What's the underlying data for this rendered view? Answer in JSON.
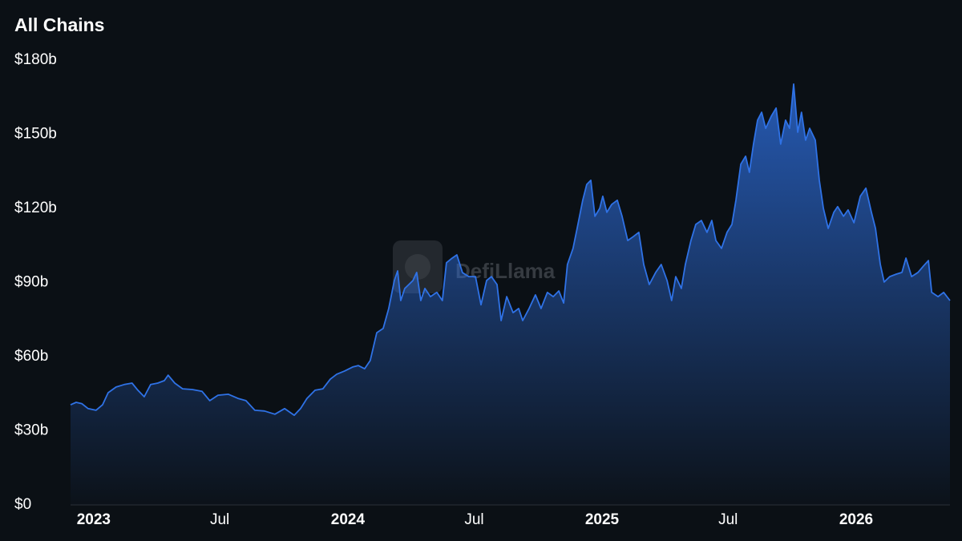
{
  "chart_data": {
    "type": "area",
    "title": "All Chains",
    "watermark": "DefiLlama",
    "color": "#2f72e6",
    "x": [
      2022.909,
      2022.931,
      2022.953,
      2022.978,
      2023.009,
      2023.035,
      2023.057,
      2023.088,
      2023.12,
      2023.151,
      2023.174,
      2023.199,
      2023.224,
      2023.252,
      2023.278,
      2023.293,
      2023.319,
      2023.35,
      2023.388,
      2023.426,
      2023.457,
      2023.489,
      2023.53,
      2023.568,
      2023.599,
      2023.634,
      2023.672,
      2023.713,
      2023.751,
      2023.789,
      2023.814,
      2023.839,
      2023.871,
      2023.902,
      2023.931,
      2023.956,
      2023.987,
      2024.019,
      2024.041,
      2024.066,
      2024.088,
      2024.114,
      2024.139,
      2024.161,
      2024.183,
      2024.196,
      2024.208,
      2024.224,
      2024.24,
      2024.256,
      2024.271,
      2024.287,
      2024.303,
      2024.325,
      2024.35,
      2024.372,
      2024.388,
      2024.407,
      2024.429,
      2024.451,
      2024.476,
      2024.502,
      2024.524,
      2024.546,
      2024.565,
      2024.587,
      2024.603,
      2024.625,
      2024.65,
      2024.672,
      2024.688,
      2024.713,
      2024.738,
      2024.76,
      2024.785,
      2024.808,
      2024.83,
      2024.849,
      2024.864,
      2024.886,
      2024.902,
      2024.924,
      2024.94,
      2024.956,
      2024.972,
      2024.991,
      2025.003,
      2025.019,
      2025.038,
      2025.06,
      2025.079,
      2025.101,
      2025.123,
      2025.145,
      2025.164,
      2025.186,
      2025.211,
      2025.233,
      2025.256,
      2025.274,
      2025.29,
      2025.312,
      2025.328,
      2025.35,
      2025.369,
      2025.391,
      2025.413,
      2025.432,
      2025.448,
      2025.47,
      2025.492,
      2025.511,
      2025.527,
      2025.546,
      2025.565,
      2025.58,
      2025.596,
      2025.612,
      2025.628,
      2025.644,
      2025.666,
      2025.685,
      2025.703,
      2025.722,
      2025.738,
      2025.754,
      2025.77,
      2025.785,
      2025.801,
      2025.817,
      2025.839,
      2025.855,
      2025.871,
      2025.89,
      2025.912,
      2025.927,
      2025.95,
      2025.968,
      2025.991,
      2026.016,
      2026.038,
      2026.06,
      2026.076,
      2026.095,
      2026.11,
      2026.132,
      2026.158,
      2026.18,
      2026.196,
      2026.218,
      2026.243,
      2026.265,
      2026.284,
      2026.297,
      2026.322,
      2026.344,
      2026.369
    ],
    "values": [
      40.5,
      41.5,
      41,
      39,
      38.3,
      40.5,
      45.4,
      47.7,
      48.7,
      49.3,
      46.4,
      43.8,
      48.7,
      49.3,
      50.3,
      52.5,
      49.3,
      47,
      46.7,
      46,
      42.2,
      44.4,
      44.8,
      43.1,
      42.2,
      38.3,
      38,
      36.7,
      39,
      36.3,
      39,
      43.1,
      46.4,
      47,
      50.9,
      52.9,
      54.2,
      55.8,
      56.4,
      55.1,
      58.4,
      69.7,
      71.4,
      79.5,
      90.8,
      94.7,
      82.7,
      87.6,
      89.2,
      90.8,
      94.1,
      82.7,
      87.6,
      84.3,
      86,
      82.7,
      98,
      99.6,
      101.2,
      94,
      92.4,
      92.4,
      81,
      90.8,
      92.4,
      89.2,
      74.6,
      84.3,
      77.8,
      79.5,
      74.6,
      79.5,
      85,
      79.5,
      86,
      84.3,
      86.6,
      81.7,
      97.3,
      103.8,
      111.9,
      123.3,
      129.7,
      131.4,
      116.8,
      120,
      124.9,
      118.4,
      121.6,
      123.3,
      116.8,
      107,
      108.6,
      110.3,
      97.3,
      89.2,
      94.1,
      97.3,
      90.8,
      82.7,
      92.4,
      87.6,
      97.3,
      107,
      113.5,
      115.1,
      110.3,
      115.1,
      107,
      103.8,
      110.3,
      113.5,
      123.3,
      137.9,
      141.1,
      134.6,
      146,
      155.7,
      158.9,
      152.4,
      157.3,
      160.6,
      146,
      155.7,
      152.4,
      170.3,
      150.8,
      158.9,
      147.6,
      152.4,
      147.6,
      131.4,
      120,
      111.9,
      118.4,
      120.7,
      116.8,
      119.4,
      114.2,
      124.9,
      128.2,
      118.4,
      111.9,
      97.3,
      90.2,
      92.4,
      93.4,
      94.1,
      99.9,
      92.4,
      94.1,
      96.7,
      98.9,
      86,
      84.3,
      86,
      82.7
    ],
    "xlim": [
      2022.909,
      2026.369
    ],
    "xticks": [
      2023,
      {
        "value": 2023.496,
        "label": "Jul"
      },
      2024,
      {
        "value": 2024.497,
        "label": "Jul"
      },
      2025,
      {
        "value": 2025.496,
        "label": "Jul"
      },
      2026
    ],
    "ylim": [
      0,
      180
    ],
    "yticks": [
      {
        "value": 0,
        "label": "$0"
      },
      {
        "value": 30,
        "label": "$30b"
      },
      {
        "value": 60,
        "label": "$60b"
      },
      {
        "value": 90,
        "label": "$90b"
      },
      {
        "value": 120,
        "label": "$120b"
      },
      {
        "value": 150,
        "label": "$150b"
      },
      {
        "value": 180,
        "label": "$180b"
      }
    ]
  }
}
